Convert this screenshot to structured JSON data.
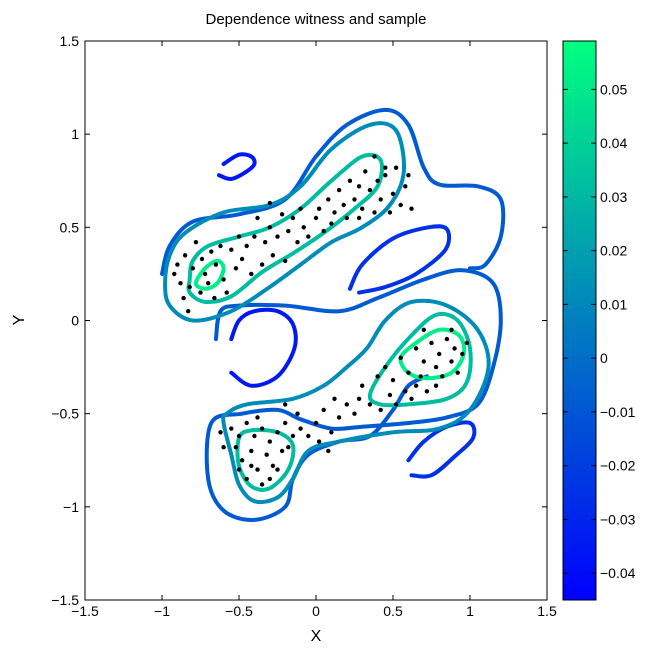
{
  "chart_data": {
    "type": "contour",
    "title": "Dependence witness and sample",
    "xlabel": "X",
    "ylabel": "Y",
    "xlim": [
      -1.5,
      1.5
    ],
    "ylim": [
      -1.5,
      1.5
    ],
    "xticks": [
      -1.5,
      -1,
      -0.5,
      0,
      0.5,
      1,
      1.5
    ],
    "yticks": [
      -1.5,
      -1,
      -0.5,
      0,
      0.5,
      1,
      1.5
    ],
    "xtick_labels": [
      "−1.5",
      "−1",
      "−0.5",
      "0",
      "0.5",
      "1",
      "1.5"
    ],
    "ytick_labels": [
      "−1.5",
      "−1",
      "−0.5",
      "0",
      "0.5",
      "1",
      "1.5"
    ],
    "grid": false,
    "colorbar": {
      "range": [
        -0.045,
        0.059
      ],
      "ticks": [
        -0.04,
        -0.03,
        -0.02,
        -0.01,
        0,
        0.01,
        0.02,
        0.03,
        0.04,
        0.05
      ],
      "tick_labels": [
        "−0.04",
        "−0.03",
        "−0.02",
        "−0.01",
        "0",
        "0.01",
        "0.02",
        "0.03",
        "0.04",
        "0.05"
      ],
      "color_low": "#0000ff",
      "color_high": "#00ff80"
    },
    "contours": [
      {
        "level": -0.035,
        "points": [
          [
            -0.6,
            0.84
          ],
          [
            -0.5,
            0.89
          ],
          [
            -0.42,
            0.88
          ],
          [
            -0.4,
            0.84
          ],
          [
            -0.45,
            0.8
          ],
          [
            -0.55,
            0.76
          ],
          [
            -0.63,
            0.78
          ]
        ]
      },
      {
        "level": -0.035,
        "points": [
          [
            -0.55,
            -0.1
          ],
          [
            -0.5,
            0.0
          ],
          [
            -0.4,
            0.05
          ],
          [
            -0.25,
            0.05
          ],
          [
            -0.15,
            -0.02
          ],
          [
            -0.14,
            -0.15
          ],
          [
            -0.25,
            -0.3
          ],
          [
            -0.42,
            -0.35
          ],
          [
            -0.55,
            -0.28
          ]
        ]
      },
      {
        "level": -0.025,
        "points": [
          [
            0.22,
            0.17
          ],
          [
            0.3,
            0.3
          ],
          [
            0.5,
            0.44
          ],
          [
            0.73,
            0.5
          ],
          [
            0.85,
            0.49
          ],
          [
            0.84,
            0.38
          ],
          [
            0.65,
            0.25
          ],
          [
            0.45,
            0.18
          ],
          [
            0.28,
            0.15
          ]
        ]
      },
      {
        "level": -0.025,
        "points": [
          [
            0.6,
            -0.75
          ],
          [
            0.7,
            -0.65
          ],
          [
            0.85,
            -0.57
          ],
          [
            1.0,
            -0.55
          ],
          [
            1.02,
            -0.63
          ],
          [
            0.9,
            -0.73
          ],
          [
            0.75,
            -0.83
          ],
          [
            0.62,
            -0.83
          ]
        ]
      },
      {
        "level": -0.008,
        "points": [
          [
            -0.65,
            -0.1
          ],
          [
            -0.62,
            0.05
          ],
          [
            -0.5,
            0.08
          ],
          [
            -0.2,
            0.08
          ],
          [
            0.15,
            0.05
          ],
          [
            0.4,
            0.12
          ],
          [
            0.7,
            0.22
          ],
          [
            0.95,
            0.27
          ],
          [
            1.15,
            0.2
          ],
          [
            1.2,
            0.0
          ],
          [
            1.15,
            -0.25
          ],
          [
            1.05,
            -0.45
          ],
          [
            0.85,
            -0.52
          ],
          [
            0.6,
            -0.55
          ],
          [
            0.3,
            -0.57
          ],
          [
            0.1,
            -0.58
          ],
          [
            -0.1,
            -0.53
          ],
          [
            -0.25,
            -0.48
          ],
          [
            -0.48,
            -0.5
          ],
          [
            -0.68,
            -0.55
          ],
          [
            -0.7,
            -0.85
          ],
          [
            -0.6,
            -1.02
          ],
          [
            -0.4,
            -1.07
          ],
          [
            -0.2,
            -1.0
          ],
          [
            -0.15,
            -0.85
          ],
          [
            -0.05,
            -0.72
          ],
          [
            0.15,
            -0.65
          ],
          [
            0.35,
            -0.62
          ],
          [
            0.5,
            -0.48
          ],
          [
            0.6,
            -0.35
          ],
          [
            0.72,
            -0.3
          ]
        ]
      },
      {
        "level": -0.008,
        "points": [
          [
            -1.0,
            0.25
          ],
          [
            -0.95,
            0.4
          ],
          [
            -0.8,
            0.53
          ],
          [
            -0.5,
            0.57
          ],
          [
            -0.2,
            0.65
          ],
          [
            0.0,
            0.88
          ],
          [
            0.2,
            1.05
          ],
          [
            0.45,
            1.13
          ],
          [
            0.6,
            1.05
          ],
          [
            0.7,
            0.82
          ],
          [
            0.8,
            0.73
          ],
          [
            1.05,
            0.72
          ],
          [
            1.2,
            0.65
          ],
          [
            1.2,
            0.45
          ],
          [
            1.1,
            0.3
          ],
          [
            1.0,
            0.28
          ]
        ]
      },
      {
        "level": 0.012,
        "points": [
          [
            -0.98,
            0.2
          ],
          [
            -0.95,
            0.35
          ],
          [
            -0.85,
            0.47
          ],
          [
            -0.6,
            0.58
          ],
          [
            -0.3,
            0.62
          ],
          [
            -0.1,
            0.72
          ],
          [
            0.1,
            0.92
          ],
          [
            0.35,
            1.05
          ],
          [
            0.52,
            1.02
          ],
          [
            0.57,
            0.8
          ],
          [
            0.48,
            0.62
          ],
          [
            0.3,
            0.5
          ],
          [
            0.1,
            0.42
          ],
          [
            -0.1,
            0.3
          ],
          [
            -0.3,
            0.18
          ],
          [
            -0.55,
            0.05
          ],
          [
            -0.8,
            0.0
          ],
          [
            -0.95,
            0.08
          ],
          [
            -0.98,
            0.2
          ]
        ]
      },
      {
        "level": 0.012,
        "points": [
          [
            -0.6,
            -0.55
          ],
          [
            -0.55,
            -0.72
          ],
          [
            -0.5,
            -0.88
          ],
          [
            -0.4,
            -0.97
          ],
          [
            -0.25,
            -0.95
          ],
          [
            -0.15,
            -0.85
          ],
          [
            -0.05,
            -0.7
          ],
          [
            0.15,
            -0.65
          ],
          [
            0.5,
            -0.6
          ],
          [
            0.8,
            -0.58
          ],
          [
            1.0,
            -0.48
          ],
          [
            1.12,
            -0.25
          ],
          [
            1.05,
            -0.05
          ],
          [
            0.85,
            0.08
          ],
          [
            0.62,
            0.1
          ],
          [
            0.45,
            0.0
          ],
          [
            0.33,
            -0.15
          ],
          [
            0.2,
            -0.25
          ],
          [
            0.05,
            -0.35
          ],
          [
            -0.15,
            -0.42
          ],
          [
            -0.45,
            -0.45
          ],
          [
            -0.58,
            -0.5
          ],
          [
            -0.6,
            -0.55
          ]
        ]
      },
      {
        "level": 0.032,
        "points": [
          [
            -0.82,
            0.22
          ],
          [
            -0.8,
            0.32
          ],
          [
            -0.7,
            0.4
          ],
          [
            -0.5,
            0.45
          ],
          [
            -0.3,
            0.5
          ],
          [
            -0.1,
            0.6
          ],
          [
            0.1,
            0.75
          ],
          [
            0.3,
            0.88
          ],
          [
            0.42,
            0.86
          ],
          [
            0.4,
            0.72
          ],
          [
            0.25,
            0.6
          ],
          [
            0.05,
            0.47
          ],
          [
            -0.15,
            0.36
          ],
          [
            -0.35,
            0.26
          ],
          [
            -0.55,
            0.13
          ],
          [
            -0.72,
            0.1
          ],
          [
            -0.82,
            0.15
          ],
          [
            -0.82,
            0.22
          ]
        ]
      },
      {
        "level": 0.032,
        "points": [
          [
            0.35,
            -0.4
          ],
          [
            0.45,
            -0.25
          ],
          [
            0.62,
            -0.08
          ],
          [
            0.78,
            0.03
          ],
          [
            0.92,
            0.0
          ],
          [
            1.0,
            -0.15
          ],
          [
            0.98,
            -0.33
          ],
          [
            0.85,
            -0.42
          ],
          [
            0.6,
            -0.45
          ],
          [
            0.42,
            -0.45
          ],
          [
            0.35,
            -0.4
          ]
        ]
      },
      {
        "level": 0.032,
        "points": [
          [
            -0.5,
            -0.63
          ],
          [
            -0.5,
            -0.78
          ],
          [
            -0.42,
            -0.89
          ],
          [
            -0.3,
            -0.9
          ],
          [
            -0.18,
            -0.8
          ],
          [
            -0.15,
            -0.67
          ],
          [
            -0.25,
            -0.6
          ],
          [
            -0.42,
            -0.59
          ],
          [
            -0.5,
            -0.63
          ]
        ]
      },
      {
        "level": 0.052,
        "points": [
          [
            -0.78,
            0.2
          ],
          [
            -0.72,
            0.28
          ],
          [
            -0.64,
            0.32
          ],
          [
            -0.6,
            0.28
          ],
          [
            -0.64,
            0.2
          ],
          [
            -0.72,
            0.17
          ],
          [
            -0.78,
            0.2
          ]
        ]
      },
      {
        "level": 0.052,
        "points": [
          [
            0.55,
            -0.2
          ],
          [
            0.65,
            -0.12
          ],
          [
            0.8,
            -0.05
          ],
          [
            0.93,
            -0.08
          ],
          [
            0.96,
            -0.18
          ],
          [
            0.88,
            -0.28
          ],
          [
            0.72,
            -0.31
          ],
          [
            0.6,
            -0.28
          ],
          [
            0.55,
            -0.2
          ]
        ]
      }
    ],
    "sample": [
      [
        -0.92,
        0.25
      ],
      [
        -0.9,
        0.3
      ],
      [
        -0.88,
        0.2
      ],
      [
        -0.86,
        0.12
      ],
      [
        -0.85,
        0.35
      ],
      [
        -0.83,
        0.05
      ],
      [
        -0.82,
        0.18
      ],
      [
        -0.8,
        0.28
      ],
      [
        -0.78,
        0.42
      ],
      [
        -0.75,
        0.15
      ],
      [
        -0.74,
        0.33
      ],
      [
        -0.72,
        0.25
      ],
      [
        -0.7,
        0.2
      ],
      [
        -0.68,
        0.37
      ],
      [
        -0.66,
        0.12
      ],
      [
        -0.65,
        0.3
      ],
      [
        -0.62,
        0.4
      ],
      [
        -0.6,
        0.22
      ],
      [
        -0.58,
        0.15
      ],
      [
        -0.55,
        0.38
      ],
      [
        -0.52,
        0.28
      ],
      [
        -0.5,
        0.45
      ],
      [
        -0.48,
        0.33
      ],
      [
        -0.45,
        0.4
      ],
      [
        -0.42,
        0.25
      ],
      [
        -0.4,
        0.45
      ],
      [
        -0.38,
        0.55
      ],
      [
        -0.35,
        0.3
      ],
      [
        -0.33,
        0.42
      ],
      [
        -0.3,
        0.5
      ],
      [
        -0.28,
        0.35
      ],
      [
        -0.25,
        0.45
      ],
      [
        -0.22,
        0.57
      ],
      [
        -0.2,
        0.32
      ],
      [
        -0.18,
        0.48
      ],
      [
        -0.15,
        0.55
      ],
      [
        -0.12,
        0.42
      ],
      [
        -0.1,
        0.6
      ],
      [
        -0.08,
        0.5
      ],
      [
        -0.05,
        0.45
      ],
      [
        0.0,
        0.55
      ],
      [
        0.02,
        0.6
      ],
      [
        0.05,
        0.48
      ],
      [
        0.08,
        0.65
      ],
      [
        0.1,
        0.52
      ],
      [
        0.12,
        0.58
      ],
      [
        0.15,
        0.7
      ],
      [
        0.18,
        0.62
      ],
      [
        0.2,
        0.55
      ],
      [
        0.22,
        0.75
      ],
      [
        0.25,
        0.65
      ],
      [
        0.28,
        0.72
      ],
      [
        0.3,
        0.6
      ],
      [
        0.32,
        0.8
      ],
      [
        0.35,
        0.7
      ],
      [
        0.38,
        0.88
      ],
      [
        0.4,
        0.75
      ],
      [
        0.42,
        0.65
      ],
      [
        0.45,
        0.78
      ],
      [
        0.48,
        0.58
      ],
      [
        0.5,
        0.68
      ],
      [
        0.52,
        0.82
      ],
      [
        0.55,
        0.62
      ],
      [
        0.58,
        0.72
      ],
      [
        0.6,
        0.78
      ],
      [
        0.62,
        0.6
      ],
      [
        0.45,
        0.82
      ],
      [
        0.28,
        0.55
      ],
      [
        -0.3,
        0.63
      ],
      [
        0.38,
        0.58
      ],
      [
        0.3,
        -0.35
      ],
      [
        0.35,
        -0.45
      ],
      [
        0.4,
        -0.3
      ],
      [
        0.42,
        -0.48
      ],
      [
        0.45,
        -0.25
      ],
      [
        0.48,
        -0.4
      ],
      [
        0.5,
        -0.32
      ],
      [
        0.52,
        -0.45
      ],
      [
        0.55,
        -0.2
      ],
      [
        0.58,
        -0.38
      ],
      [
        0.6,
        -0.28
      ],
      [
        0.62,
        -0.42
      ],
      [
        0.65,
        -0.15
      ],
      [
        0.68,
        -0.3
      ],
      [
        0.7,
        -0.22
      ],
      [
        0.72,
        -0.38
      ],
      [
        0.75,
        -0.12
      ],
      [
        0.78,
        -0.25
      ],
      [
        0.8,
        -0.18
      ],
      [
        0.82,
        -0.3
      ],
      [
        0.85,
        -0.1
      ],
      [
        0.88,
        -0.22
      ],
      [
        0.9,
        -0.15
      ],
      [
        0.92,
        -0.28
      ],
      [
        0.95,
        -0.18
      ],
      [
        0.98,
        -0.12
      ],
      [
        0.78,
        -0.35
      ],
      [
        0.65,
        -0.35
      ],
      [
        0.7,
        -0.05
      ],
      [
        0.88,
        -0.05
      ],
      [
        -0.55,
        -0.58
      ],
      [
        -0.52,
        -0.68
      ],
      [
        -0.5,
        -0.62
      ],
      [
        -0.48,
        -0.75
      ],
      [
        -0.45,
        -0.55
      ],
      [
        -0.42,
        -0.7
      ],
      [
        -0.4,
        -0.62
      ],
      [
        -0.38,
        -0.8
      ],
      [
        -0.35,
        -0.58
      ],
      [
        -0.32,
        -0.72
      ],
      [
        -0.3,
        -0.65
      ],
      [
        -0.28,
        -0.78
      ],
      [
        -0.25,
        -0.6
      ],
      [
        -0.22,
        -0.7
      ],
      [
        -0.2,
        -0.55
      ],
      [
        -0.18,
        -0.68
      ],
      [
        -0.15,
        -0.62
      ],
      [
        -0.12,
        -0.5
      ],
      [
        -0.1,
        -0.58
      ],
      [
        -0.05,
        -0.62
      ],
      [
        0.0,
        -0.55
      ],
      [
        0.02,
        -0.65
      ],
      [
        0.05,
        -0.48
      ],
      [
        0.1,
        -0.6
      ],
      [
        0.15,
        -0.52
      ],
      [
        0.2,
        -0.45
      ],
      [
        0.25,
        -0.5
      ],
      [
        0.28,
        -0.42
      ],
      [
        -0.45,
        -0.85
      ],
      [
        -0.35,
        -0.88
      ],
      [
        -0.42,
        -0.78
      ],
      [
        -0.3,
        -0.85
      ],
      [
        -0.25,
        -0.8
      ],
      [
        -0.5,
        -0.8
      ],
      [
        0.08,
        -0.7
      ],
      [
        -0.6,
        -0.68
      ],
      [
        -0.38,
        -0.52
      ],
      [
        0.12,
        -0.42
      ],
      [
        -0.62,
        -0.6
      ],
      [
        -0.2,
        -0.45
      ]
    ]
  }
}
